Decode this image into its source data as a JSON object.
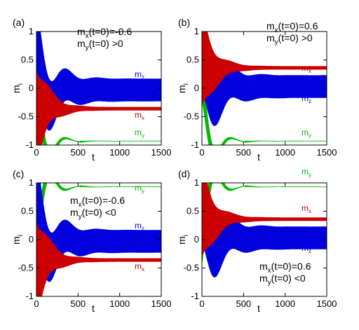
{
  "chart_data": [
    {
      "type": "line",
      "panel_label": "(a)",
      "xlabel": "t",
      "ylabel": "m_i",
      "xlim": [
        0,
        1500
      ],
      "ylim": [
        -1,
        1
      ],
      "xticks": [
        "0",
        "500",
        "1000",
        "1500"
      ],
      "yticks": [
        "1",
        "0.5",
        "0",
        "-0.5",
        "-1"
      ],
      "annotation_lines": [
        {
          "base": "m",
          "sub": "x",
          "rest": "(t=0)=-0.6"
        },
        {
          "base": "m",
          "sub": "y",
          "rest": "(t=0) >0"
        }
      ],
      "series": [
        {
          "name": "m_x",
          "label_base": "m",
          "label_sub": "x",
          "color": "#cc0000",
          "initial": -0.6,
          "final_center": -0.36,
          "final_amp": 0.03,
          "initial_amp": 0.9,
          "decay_time": 140
        },
        {
          "name": "m_y",
          "label_base": "m",
          "label_sub": "y",
          "color": "#00bb00",
          "initial": 0.1,
          "final_center": -0.93,
          "final_amp": 0.0,
          "initial_amp": 0.35,
          "decay_time": 120
        },
        {
          "name": "m_z",
          "label_base": "m",
          "label_sub": "z",
          "color": "#0000dd",
          "initial": 0.7,
          "final_center": -0.03,
          "final_amp": 0.2,
          "initial_amp": 0.8,
          "decay_time": 180
        }
      ]
    },
    {
      "type": "line",
      "panel_label": "(b)",
      "xlabel": "t",
      "ylabel": "m_i",
      "xlim": [
        0,
        1500
      ],
      "ylim": [
        -1,
        1
      ],
      "xticks": [
        "0",
        "500",
        "1000",
        "1500"
      ],
      "yticks": [
        "1",
        "0.5",
        "0",
        "-0.5",
        "-1"
      ],
      "annotation_lines": [
        {
          "base": "m",
          "sub": "x",
          "rest": "(t=0)=0.6"
        },
        {
          "base": "m",
          "sub": "y",
          "rest": "(t=0) >0"
        }
      ],
      "series": [
        {
          "name": "m_x",
          "label_base": "m",
          "label_sub": "x",
          "color": "#cc0000",
          "initial": 0.6,
          "final_center": 0.36,
          "final_amp": 0.03,
          "initial_amp": 0.9,
          "decay_time": 140
        },
        {
          "name": "m_y",
          "label_base": "m",
          "label_sub": "y",
          "color": "#00bb00",
          "initial": 0.1,
          "final_center": -0.93,
          "final_amp": 0.0,
          "initial_amp": 0.35,
          "decay_time": 120
        },
        {
          "name": "m_z",
          "label_base": "m",
          "label_sub": "z",
          "color": "#0000dd",
          "initial": 0.7,
          "final_center": 0.03,
          "final_amp": 0.2,
          "initial_amp": 0.8,
          "decay_time": 180
        }
      ]
    },
    {
      "type": "line",
      "panel_label": "(c)",
      "xlabel": "t",
      "ylabel": "m_i",
      "xlim": [
        0,
        1500
      ],
      "ylim": [
        -1,
        1
      ],
      "xticks": [
        "0",
        "500",
        "1000",
        "1500"
      ],
      "yticks": [
        "1",
        "0.5",
        "0",
        "-0.5",
        "-1"
      ],
      "annotation_lines": [
        {
          "base": "m",
          "sub": "x",
          "rest": "(t=0)=-0.6"
        },
        {
          "base": "m",
          "sub": "y",
          "rest": "(t=0) <0"
        }
      ],
      "series": [
        {
          "name": "m_x",
          "label_base": "m",
          "label_sub": "x",
          "color": "#cc0000",
          "initial": -0.6,
          "final_center": -0.36,
          "final_amp": 0.03,
          "initial_amp": 0.9,
          "decay_time": 140
        },
        {
          "name": "m_y",
          "label_base": "m",
          "label_sub": "y",
          "color": "#00bb00",
          "initial": -0.1,
          "final_center": 0.93,
          "final_amp": 0.0,
          "initial_amp": 0.35,
          "decay_time": 120
        },
        {
          "name": "m_z",
          "label_base": "m",
          "label_sub": "z",
          "color": "#0000dd",
          "initial": 0.7,
          "final_center": -0.03,
          "final_amp": 0.2,
          "initial_amp": 0.8,
          "decay_time": 180
        }
      ]
    },
    {
      "type": "line",
      "panel_label": "(d)",
      "xlabel": "t",
      "ylabel": "m_i",
      "xlim": [
        0,
        1500
      ],
      "ylim": [
        -1,
        1
      ],
      "xticks": [
        "0",
        "500",
        "1000",
        "1500"
      ],
      "yticks": [
        "1",
        "0.5",
        "0",
        "-0.5",
        "-1"
      ],
      "annotation_lines": [
        {
          "base": "m",
          "sub": "x",
          "rest": "(t=0)=0.6"
        },
        {
          "base": "m",
          "sub": "y",
          "rest": "(t=0) <0"
        }
      ],
      "series": [
        {
          "name": "m_x",
          "label_base": "m",
          "label_sub": "x",
          "color": "#cc0000",
          "initial": 0.6,
          "final_center": 0.36,
          "final_amp": 0.03,
          "initial_amp": 0.9,
          "decay_time": 140
        },
        {
          "name": "m_y",
          "label_base": "m",
          "label_sub": "y",
          "color": "#00bb00",
          "initial": -0.1,
          "final_center": 0.93,
          "final_amp": 0.0,
          "initial_amp": 0.35,
          "decay_time": 120
        },
        {
          "name": "m_z",
          "label_base": "m",
          "label_sub": "z",
          "color": "#0000dd",
          "initial": 0.7,
          "final_center": 0.03,
          "final_amp": 0.2,
          "initial_amp": 0.8,
          "decay_time": 180
        }
      ]
    }
  ]
}
